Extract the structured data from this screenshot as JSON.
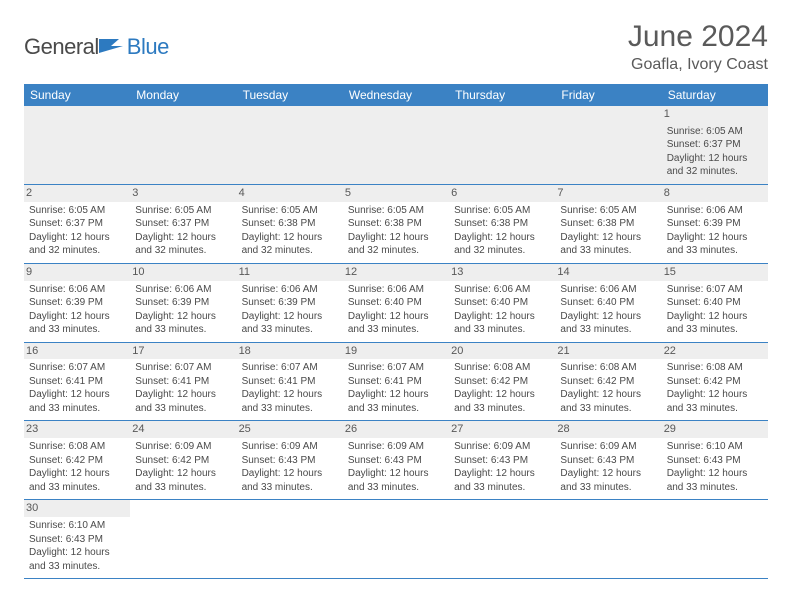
{
  "logo": {
    "word1": "General",
    "word2": "Blue"
  },
  "title": "June 2024",
  "subtitle": "Goafla, Ivory Coast",
  "colors": {
    "header_bg": "#3b82c4",
    "header_fg": "#ffffff",
    "daynum_bg": "#eeeeee",
    "row_border": "#3b82c4",
    "text": "#4a4a4a"
  },
  "days": [
    "Sunday",
    "Monday",
    "Tuesday",
    "Wednesday",
    "Thursday",
    "Friday",
    "Saturday"
  ],
  "weeks": [
    [
      null,
      null,
      null,
      null,
      null,
      null,
      {
        "n": "1",
        "sr": "Sunrise: 6:05 AM",
        "ss": "Sunset: 6:37 PM",
        "d1": "Daylight: 12 hours",
        "d2": "and 32 minutes."
      }
    ],
    [
      {
        "n": "2",
        "sr": "Sunrise: 6:05 AM",
        "ss": "Sunset: 6:37 PM",
        "d1": "Daylight: 12 hours",
        "d2": "and 32 minutes."
      },
      {
        "n": "3",
        "sr": "Sunrise: 6:05 AM",
        "ss": "Sunset: 6:37 PM",
        "d1": "Daylight: 12 hours",
        "d2": "and 32 minutes."
      },
      {
        "n": "4",
        "sr": "Sunrise: 6:05 AM",
        "ss": "Sunset: 6:38 PM",
        "d1": "Daylight: 12 hours",
        "d2": "and 32 minutes."
      },
      {
        "n": "5",
        "sr": "Sunrise: 6:05 AM",
        "ss": "Sunset: 6:38 PM",
        "d1": "Daylight: 12 hours",
        "d2": "and 32 minutes."
      },
      {
        "n": "6",
        "sr": "Sunrise: 6:05 AM",
        "ss": "Sunset: 6:38 PM",
        "d1": "Daylight: 12 hours",
        "d2": "and 32 minutes."
      },
      {
        "n": "7",
        "sr": "Sunrise: 6:05 AM",
        "ss": "Sunset: 6:38 PM",
        "d1": "Daylight: 12 hours",
        "d2": "and 33 minutes."
      },
      {
        "n": "8",
        "sr": "Sunrise: 6:06 AM",
        "ss": "Sunset: 6:39 PM",
        "d1": "Daylight: 12 hours",
        "d2": "and 33 minutes."
      }
    ],
    [
      {
        "n": "9",
        "sr": "Sunrise: 6:06 AM",
        "ss": "Sunset: 6:39 PM",
        "d1": "Daylight: 12 hours",
        "d2": "and 33 minutes."
      },
      {
        "n": "10",
        "sr": "Sunrise: 6:06 AM",
        "ss": "Sunset: 6:39 PM",
        "d1": "Daylight: 12 hours",
        "d2": "and 33 minutes."
      },
      {
        "n": "11",
        "sr": "Sunrise: 6:06 AM",
        "ss": "Sunset: 6:39 PM",
        "d1": "Daylight: 12 hours",
        "d2": "and 33 minutes."
      },
      {
        "n": "12",
        "sr": "Sunrise: 6:06 AM",
        "ss": "Sunset: 6:40 PM",
        "d1": "Daylight: 12 hours",
        "d2": "and 33 minutes."
      },
      {
        "n": "13",
        "sr": "Sunrise: 6:06 AM",
        "ss": "Sunset: 6:40 PM",
        "d1": "Daylight: 12 hours",
        "d2": "and 33 minutes."
      },
      {
        "n": "14",
        "sr": "Sunrise: 6:06 AM",
        "ss": "Sunset: 6:40 PM",
        "d1": "Daylight: 12 hours",
        "d2": "and 33 minutes."
      },
      {
        "n": "15",
        "sr": "Sunrise: 6:07 AM",
        "ss": "Sunset: 6:40 PM",
        "d1": "Daylight: 12 hours",
        "d2": "and 33 minutes."
      }
    ],
    [
      {
        "n": "16",
        "sr": "Sunrise: 6:07 AM",
        "ss": "Sunset: 6:41 PM",
        "d1": "Daylight: 12 hours",
        "d2": "and 33 minutes."
      },
      {
        "n": "17",
        "sr": "Sunrise: 6:07 AM",
        "ss": "Sunset: 6:41 PM",
        "d1": "Daylight: 12 hours",
        "d2": "and 33 minutes."
      },
      {
        "n": "18",
        "sr": "Sunrise: 6:07 AM",
        "ss": "Sunset: 6:41 PM",
        "d1": "Daylight: 12 hours",
        "d2": "and 33 minutes."
      },
      {
        "n": "19",
        "sr": "Sunrise: 6:07 AM",
        "ss": "Sunset: 6:41 PM",
        "d1": "Daylight: 12 hours",
        "d2": "and 33 minutes."
      },
      {
        "n": "20",
        "sr": "Sunrise: 6:08 AM",
        "ss": "Sunset: 6:42 PM",
        "d1": "Daylight: 12 hours",
        "d2": "and 33 minutes."
      },
      {
        "n": "21",
        "sr": "Sunrise: 6:08 AM",
        "ss": "Sunset: 6:42 PM",
        "d1": "Daylight: 12 hours",
        "d2": "and 33 minutes."
      },
      {
        "n": "22",
        "sr": "Sunrise: 6:08 AM",
        "ss": "Sunset: 6:42 PM",
        "d1": "Daylight: 12 hours",
        "d2": "and 33 minutes."
      }
    ],
    [
      {
        "n": "23",
        "sr": "Sunrise: 6:08 AM",
        "ss": "Sunset: 6:42 PM",
        "d1": "Daylight: 12 hours",
        "d2": "and 33 minutes."
      },
      {
        "n": "24",
        "sr": "Sunrise: 6:09 AM",
        "ss": "Sunset: 6:42 PM",
        "d1": "Daylight: 12 hours",
        "d2": "and 33 minutes."
      },
      {
        "n": "25",
        "sr": "Sunrise: 6:09 AM",
        "ss": "Sunset: 6:43 PM",
        "d1": "Daylight: 12 hours",
        "d2": "and 33 minutes."
      },
      {
        "n": "26",
        "sr": "Sunrise: 6:09 AM",
        "ss": "Sunset: 6:43 PM",
        "d1": "Daylight: 12 hours",
        "d2": "and 33 minutes."
      },
      {
        "n": "27",
        "sr": "Sunrise: 6:09 AM",
        "ss": "Sunset: 6:43 PM",
        "d1": "Daylight: 12 hours",
        "d2": "and 33 minutes."
      },
      {
        "n": "28",
        "sr": "Sunrise: 6:09 AM",
        "ss": "Sunset: 6:43 PM",
        "d1": "Daylight: 12 hours",
        "d2": "and 33 minutes."
      },
      {
        "n": "29",
        "sr": "Sunrise: 6:10 AM",
        "ss": "Sunset: 6:43 PM",
        "d1": "Daylight: 12 hours",
        "d2": "and 33 minutes."
      }
    ],
    [
      {
        "n": "30",
        "sr": "Sunrise: 6:10 AM",
        "ss": "Sunset: 6:43 PM",
        "d1": "Daylight: 12 hours",
        "d2": "and 33 minutes."
      },
      null,
      null,
      null,
      null,
      null,
      null
    ]
  ]
}
